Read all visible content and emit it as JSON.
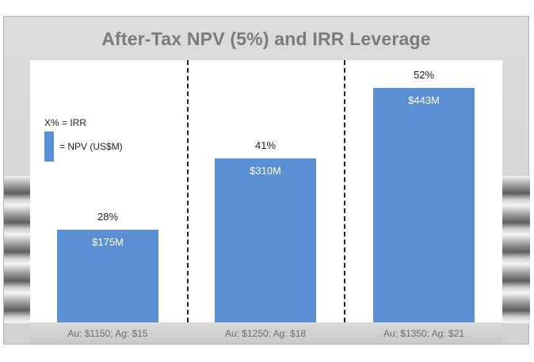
{
  "chart_data": {
    "type": "bar",
    "title": "After-Tax NPV (5%) and IRR Leverage",
    "categories": [
      "Au: $1150; Ag: $15",
      "Au: $1250; Ag: $18",
      "Au: $1350; Ag: $21"
    ],
    "series": [
      {
        "name": "NPV (US$M)",
        "values": [
          175,
          310,
          443
        ],
        "labels": [
          "$175M",
          "$310M",
          "$443M"
        ]
      }
    ],
    "irr_labels": [
      "28%",
      "41%",
      "52%"
    ],
    "ylim": [
      0,
      500
    ],
    "grid": false,
    "legend": {
      "placement": "left",
      "irr_entry": "X%  =  IRR",
      "npv_entry": "= NPV (US$M)"
    },
    "colors": {
      "bar": "#5b8fd4",
      "title": "#7b7b7b"
    }
  }
}
